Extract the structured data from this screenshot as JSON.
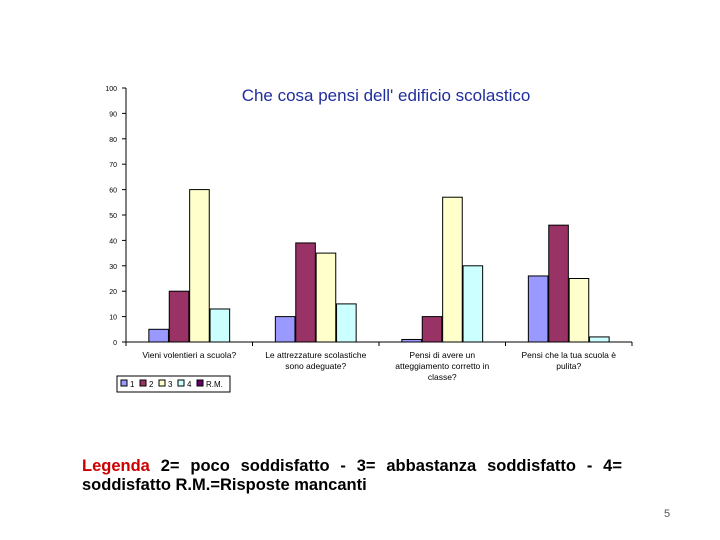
{
  "chart_data": {
    "type": "bar",
    "title": "Che cosa pensi dell' edificio scolastico",
    "ylim": [
      0,
      100
    ],
    "yticks": [
      0,
      10,
      20,
      30,
      40,
      50,
      60,
      70,
      80,
      90,
      100
    ],
    "grid": false,
    "legend_position": "bottom-left",
    "categories": [
      [
        "Vieni volentieri a scuola?"
      ],
      [
        "Le attrezzature scolastiche",
        "sono adeguate?"
      ],
      [
        "Pensi di avere un",
        "atteggiamento corretto in",
        "classe?"
      ],
      [
        "Pensi che la tua scuola è",
        "pulita?"
      ]
    ],
    "series": [
      {
        "name": "1",
        "color": "#9999ff",
        "values": [
          5,
          10,
          1,
          26
        ]
      },
      {
        "name": "2",
        "color": "#993366",
        "values": [
          20,
          39,
          10,
          46
        ]
      },
      {
        "name": "3",
        "color": "#ffffcc",
        "values": [
          60,
          35,
          57,
          25
        ]
      },
      {
        "name": "4",
        "color": "#ccffff",
        "values": [
          13,
          15,
          30,
          2
        ]
      },
      {
        "name": "R.M.",
        "color": "#660066",
        "values": [
          0,
          0,
          0,
          0
        ]
      }
    ]
  },
  "legend_note": {
    "lead": "Legenda",
    "text": " 2= poco soddisfatto - 3= abbastanza soddisfatto - 4= soddisfatto R.M.=Risposte mancanti"
  },
  "page_number": "5"
}
